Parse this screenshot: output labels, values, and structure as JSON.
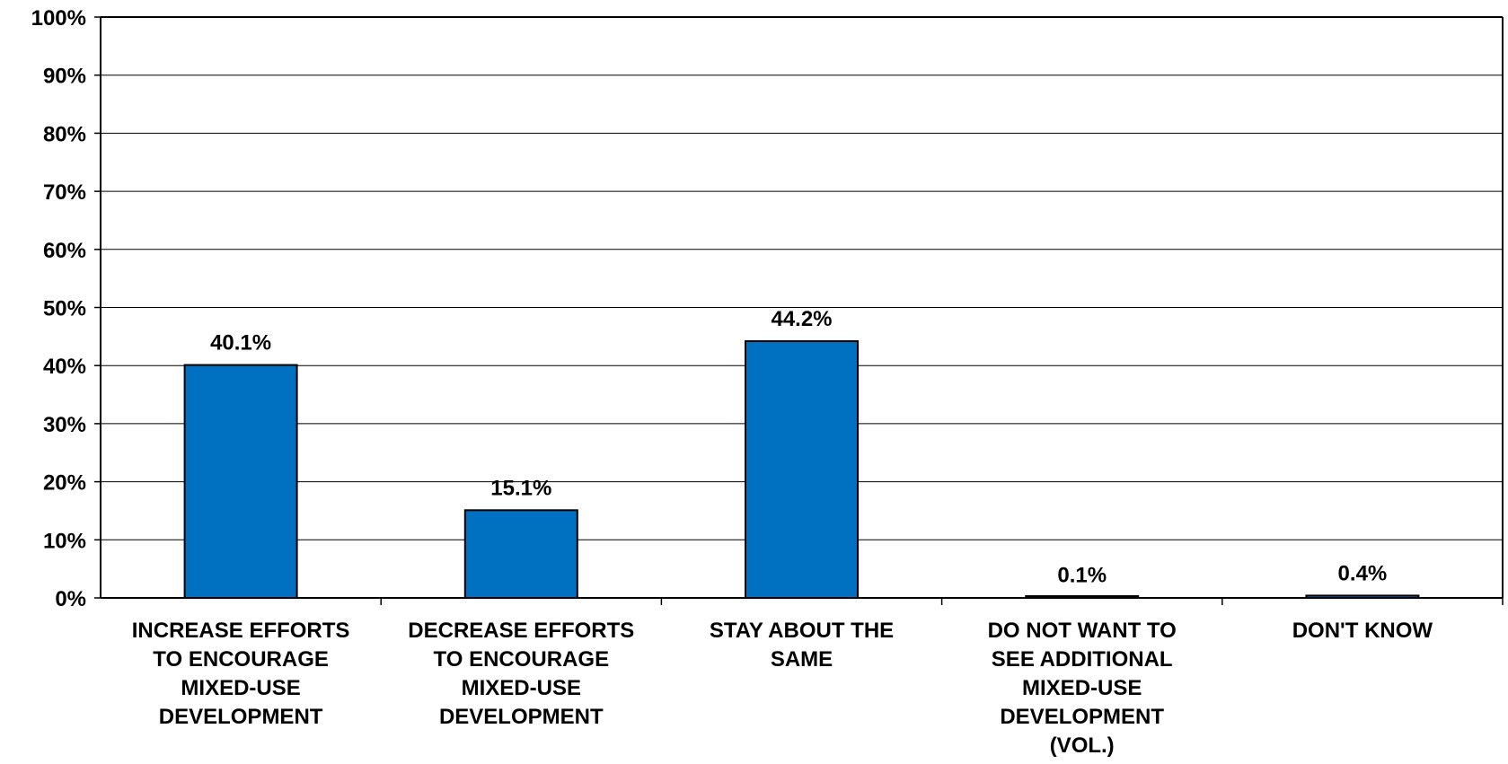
{
  "chart_data": {
    "type": "bar",
    "categories": [
      [
        "INCREASE EFFORTS",
        "TO ENCOURAGE",
        "MIXED-USE",
        "DEVELOPMENT"
      ],
      [
        "DECREASE EFFORTS",
        "TO ENCOURAGE",
        "MIXED-USE",
        "DEVELOPMENT"
      ],
      [
        "STAY ABOUT THE",
        "SAME"
      ],
      [
        "DO NOT WANT TO",
        "SEE ADDITIONAL",
        "MIXED-USE",
        "DEVELOPMENT",
        "(VOL.)"
      ],
      [
        "DON'T KNOW"
      ]
    ],
    "values": [
      40.1,
      15.1,
      44.2,
      0.1,
      0.4
    ],
    "value_labels": [
      "40.1%",
      "15.1%",
      "44.2%",
      "0.1%",
      "0.4%"
    ],
    "y_ticks": [
      "0%",
      "10%",
      "20%",
      "30%",
      "40%",
      "50%",
      "60%",
      "70%",
      "80%",
      "90%",
      "100%"
    ],
    "ylim": [
      0,
      100
    ],
    "grid": true,
    "bar_color": "#0070C0",
    "title": "",
    "xlabel": "",
    "ylabel": ""
  }
}
